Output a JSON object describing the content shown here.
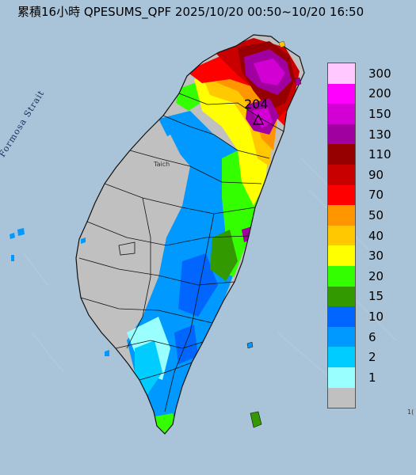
{
  "title": "累積16小時 QPESUMS_QPF 2025/10/20 00:50~10/20 16:50",
  "sea_label": "Formosa Strait",
  "city_label": "Taich",
  "max_marker": {
    "value": "204",
    "icon": "triangle-marker-icon"
  },
  "edge_label": "1(",
  "legend": {
    "unit_levels": [
      {
        "label": "300",
        "color": "#ffc8ff"
      },
      {
        "label": "200",
        "color": "#ff00ff"
      },
      {
        "label": "150",
        "color": "#d200d2"
      },
      {
        "label": "130",
        "color": "#a000a0"
      },
      {
        "label": "110",
        "color": "#960000"
      },
      {
        "label": "90",
        "color": "#c80000"
      },
      {
        "label": "70",
        "color": "#ff0000"
      },
      {
        "label": "50",
        "color": "#ff9600"
      },
      {
        "label": "40",
        "color": "#ffc800"
      },
      {
        "label": "30",
        "color": "#ffff00"
      },
      {
        "label": "20",
        "color": "#33ff00"
      },
      {
        "label": "15",
        "color": "#339900"
      },
      {
        "label": "10",
        "color": "#0066ff"
      },
      {
        "label": "6",
        "color": "#0099ff"
      },
      {
        "label": "2",
        "color": "#00ccff"
      },
      {
        "label": "1",
        "color": "#99ffff"
      },
      {
        "label": "",
        "color": "#c0c0c0"
      }
    ]
  },
  "colors": {
    "sea": "#a9c3d8",
    "land_base": "#c0c0c0",
    "boundary": "#111111"
  }
}
